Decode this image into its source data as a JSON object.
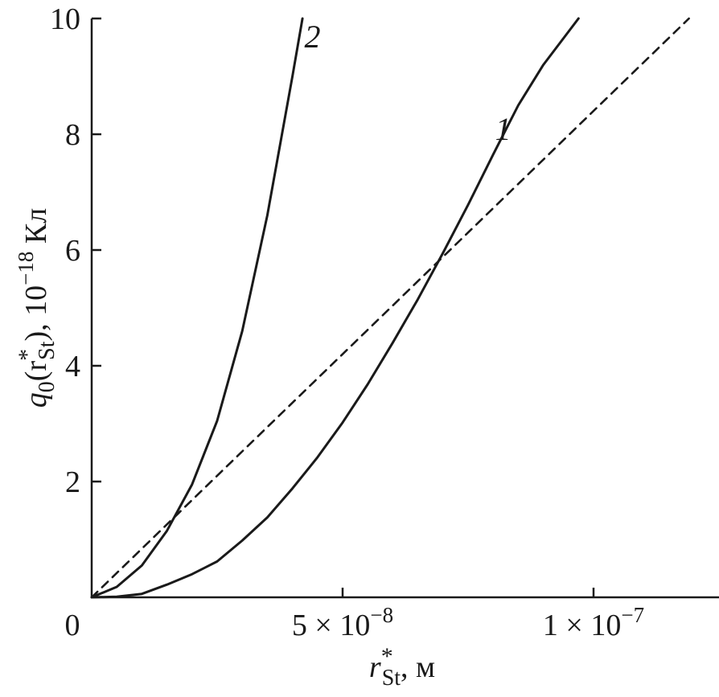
{
  "chart_data": {
    "type": "line",
    "xlabel": {
      "main": "r",
      "sup": "*",
      "sub": "St",
      "tail": ", м"
    },
    "ylabel": {
      "main": "q",
      "sub0": "0",
      "open": "(r",
      "sup": "*",
      "sub": "St",
      "tail": "), 10",
      "exp": "−18",
      "unit": " Кл"
    },
    "xlim": [
      0,
      1.25e-07
    ],
    "ylim": [
      0,
      10
    ],
    "x_ticks": [
      {
        "value": 0,
        "label": "0"
      },
      {
        "value": 5e-08,
        "label": "5 × 10",
        "exp": "−8"
      },
      {
        "value": 1e-07,
        "label": "1 × 10",
        "exp": "−7"
      }
    ],
    "y_ticks": [
      {
        "value": 2,
        "label": "2"
      },
      {
        "value": 4,
        "label": "4"
      },
      {
        "value": 6,
        "label": "6"
      },
      {
        "value": 8,
        "label": "8"
      },
      {
        "value": 10,
        "label": "10"
      }
    ],
    "grid": false,
    "series": [
      {
        "name": "1",
        "style": "solid",
        "x": [
          0,
          5e-09,
          1e-08,
          1.5e-08,
          2e-08,
          2.5e-08,
          3e-08,
          3.5e-08,
          4e-08,
          4.5e-08,
          5e-08,
          5.5e-08,
          6e-08,
          6.5e-08,
          7e-08,
          7.5e-08,
          8e-08,
          8.5e-08,
          9e-08,
          9.7e-08
        ],
        "values": [
          0,
          0.01,
          0.06,
          0.22,
          0.4,
          0.62,
          0.98,
          1.38,
          1.88,
          2.42,
          3.02,
          3.68,
          4.4,
          5.15,
          5.95,
          6.78,
          7.65,
          8.5,
          9.2,
          10
        ]
      },
      {
        "name": "2",
        "style": "solid",
        "x": [
          0,
          5e-09,
          1e-08,
          1.5e-08,
          2e-08,
          2.5e-08,
          3e-08,
          3.5e-08,
          4e-08,
          4.2e-08
        ],
        "values": [
          0,
          0.18,
          0.55,
          1.15,
          1.95,
          3.05,
          4.6,
          6.6,
          9.0,
          10
        ]
      },
      {
        "name": "",
        "style": "dashed",
        "x": [
          0,
          1.19e-07
        ],
        "values": [
          0,
          10
        ]
      }
    ],
    "curve_labels": [
      {
        "text": "1",
        "x": 8.2e-08,
        "y": 7.9
      },
      {
        "text": "2",
        "x": 4.4e-08,
        "y": 9.5
      }
    ]
  }
}
